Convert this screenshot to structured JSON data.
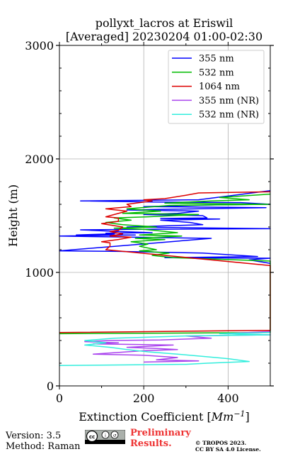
{
  "chart_data": {
    "type": "line",
    "title": "pollyxt_lacros at Eriswil",
    "subtitle": "[Averaged] 20230204 01:00-02:30",
    "xlabel": "Extinction Coefficient [",
    "xlabel_unit": "Mm",
    "xlabel_exp": "−1",
    "xlabel_close": "]",
    "ylabel": "Height (m)",
    "xlim": [
      0,
      500
    ],
    "ylim": [
      0,
      3000
    ],
    "x_ticks": [
      0,
      200,
      400
    ],
    "x_tick_labels": [
      "0",
      "200",
      "400"
    ],
    "y_ticks": [
      0,
      1000,
      2000,
      3000
    ],
    "y_tick_labels": [
      "0",
      "1000",
      "2000",
      "3000"
    ],
    "grid": true,
    "legend_position": "top-right",
    "series": [
      {
        "name": "355 nm",
        "color": "#0000ff",
        "points": [
          [
            500,
            1720
          ],
          [
            330,
            1640
          ],
          [
            50,
            1630
          ],
          [
            220,
            1620
          ],
          [
            430,
            1615
          ],
          [
            500,
            1600
          ],
          [
            370,
            1595
          ],
          [
            200,
            1580
          ],
          [
            490,
            1570
          ],
          [
            160,
            1550
          ],
          [
            330,
            1540
          ],
          [
            280,
            1520
          ],
          [
            200,
            1510
          ],
          [
            340,
            1500
          ],
          [
            350,
            1480
          ],
          [
            240,
            1475
          ],
          [
            380,
            1470
          ],
          [
            240,
            1460
          ],
          [
            310,
            1440
          ],
          [
            340,
            1420
          ],
          [
            160,
            1400
          ],
          [
            500,
            1385
          ],
          [
            200,
            1380
          ],
          [
            50,
            1375
          ],
          [
            140,
            1360
          ],
          [
            220,
            1350
          ],
          [
            110,
            1345
          ],
          [
            130,
            1340
          ],
          [
            40,
            1330
          ],
          [
            180,
            1330
          ],
          [
            0,
            1320
          ],
          [
            180,
            1310
          ],
          [
            360,
            1300
          ],
          [
            0,
            1190
          ],
          [
            140,
            1185
          ],
          [
            340,
            1170
          ],
          [
            470,
            1140
          ],
          [
            250,
            1130
          ],
          [
            500,
            1125
          ],
          [
            450,
            1110
          ],
          [
            500,
            1080
          ]
        ]
      },
      {
        "name": "532 nm",
        "color": "#00bb00",
        "points": [
          [
            500,
            1690
          ],
          [
            380,
            1660
          ],
          [
            450,
            1640
          ],
          [
            360,
            1630
          ],
          [
            250,
            1610
          ],
          [
            500,
            1600
          ],
          [
            260,
            1590
          ],
          [
            160,
            1560
          ],
          [
            240,
            1540
          ],
          [
            150,
            1520
          ],
          [
            330,
            1510
          ],
          [
            210,
            1490
          ],
          [
            130,
            1480
          ],
          [
            170,
            1460
          ],
          [
            110,
            1440
          ],
          [
            150,
            1420
          ],
          [
            230,
            1400
          ],
          [
            130,
            1390
          ],
          [
            200,
            1380
          ],
          [
            280,
            1350
          ],
          [
            190,
            1330
          ],
          [
            290,
            1320
          ],
          [
            180,
            1300
          ],
          [
            250,
            1290
          ],
          [
            170,
            1270
          ],
          [
            210,
            1250
          ],
          [
            190,
            1230
          ],
          [
            230,
            1200
          ],
          [
            190,
            1190
          ],
          [
            260,
            1170
          ],
          [
            220,
            1150
          ],
          [
            270,
            1130
          ],
          [
            500,
            1100
          ],
          [
            500,
            470
          ],
          [
            0,
            460
          ]
        ]
      },
      {
        "name": "1064 nm",
        "color": "#dd0000",
        "points": [
          [
            500,
            1710
          ],
          [
            330,
            1700
          ],
          [
            300,
            1680
          ],
          [
            250,
            1650
          ],
          [
            200,
            1640
          ],
          [
            220,
            1630
          ],
          [
            160,
            1600
          ],
          [
            170,
            1580
          ],
          [
            110,
            1560
          ],
          [
            160,
            1540
          ],
          [
            130,
            1510
          ],
          [
            110,
            1490
          ],
          [
            140,
            1480
          ],
          [
            140,
            1450
          ],
          [
            100,
            1430
          ],
          [
            150,
            1400
          ],
          [
            140,
            1370
          ],
          [
            120,
            1360
          ],
          [
            150,
            1340
          ],
          [
            120,
            1320
          ],
          [
            170,
            1310
          ],
          [
            140,
            1290
          ],
          [
            100,
            1270
          ],
          [
            120,
            1260
          ],
          [
            120,
            1230
          ],
          [
            110,
            1200
          ],
          [
            500,
            1060
          ],
          [
            500,
            490
          ],
          [
            0,
            470
          ]
        ]
      },
      {
        "name": "355 nm (NR)",
        "color": "#aa44ee",
        "points": [
          [
            500,
            480
          ],
          [
            390,
            460
          ],
          [
            500,
            450
          ],
          [
            300,
            440
          ],
          [
            360,
            420
          ],
          [
            240,
            405
          ],
          [
            120,
            400
          ],
          [
            60,
            390
          ],
          [
            140,
            380
          ],
          [
            80,
            370
          ],
          [
            270,
            360
          ],
          [
            160,
            340
          ],
          [
            230,
            330
          ],
          [
            280,
            320
          ],
          [
            200,
            310
          ],
          [
            160,
            300
          ],
          [
            80,
            280
          ],
          [
            200,
            270
          ],
          [
            280,
            250
          ],
          [
            230,
            230
          ],
          [
            330,
            220
          ],
          [
            200,
            210
          ]
        ]
      },
      {
        "name": "532 nm (NR)",
        "color": "#33eedd",
        "points": [
          [
            500,
            470
          ],
          [
            380,
            460
          ],
          [
            500,
            450
          ],
          [
            300,
            440
          ],
          [
            130,
            420
          ],
          [
            60,
            400
          ],
          [
            110,
            380
          ],
          [
            60,
            360
          ],
          [
            120,
            340
          ],
          [
            160,
            320
          ],
          [
            210,
            300
          ],
          [
            280,
            280
          ],
          [
            340,
            260
          ],
          [
            400,
            240
          ],
          [
            450,
            215
          ],
          [
            350,
            200
          ],
          [
            300,
            190
          ],
          [
            160,
            185
          ],
          [
            0,
            180
          ]
        ]
      }
    ]
  },
  "footer": {
    "version": "Version: 3.5",
    "method": "Method: Raman",
    "preliminary_line1": "Preliminary",
    "preliminary_line2": "Results.",
    "preliminary_color": "#ee3333",
    "copyright_line1": "© TROPOS 2023.",
    "copyright_line2": "CC BY SA 4.0 License.",
    "license_badge": "cc-by-sa-icon"
  }
}
